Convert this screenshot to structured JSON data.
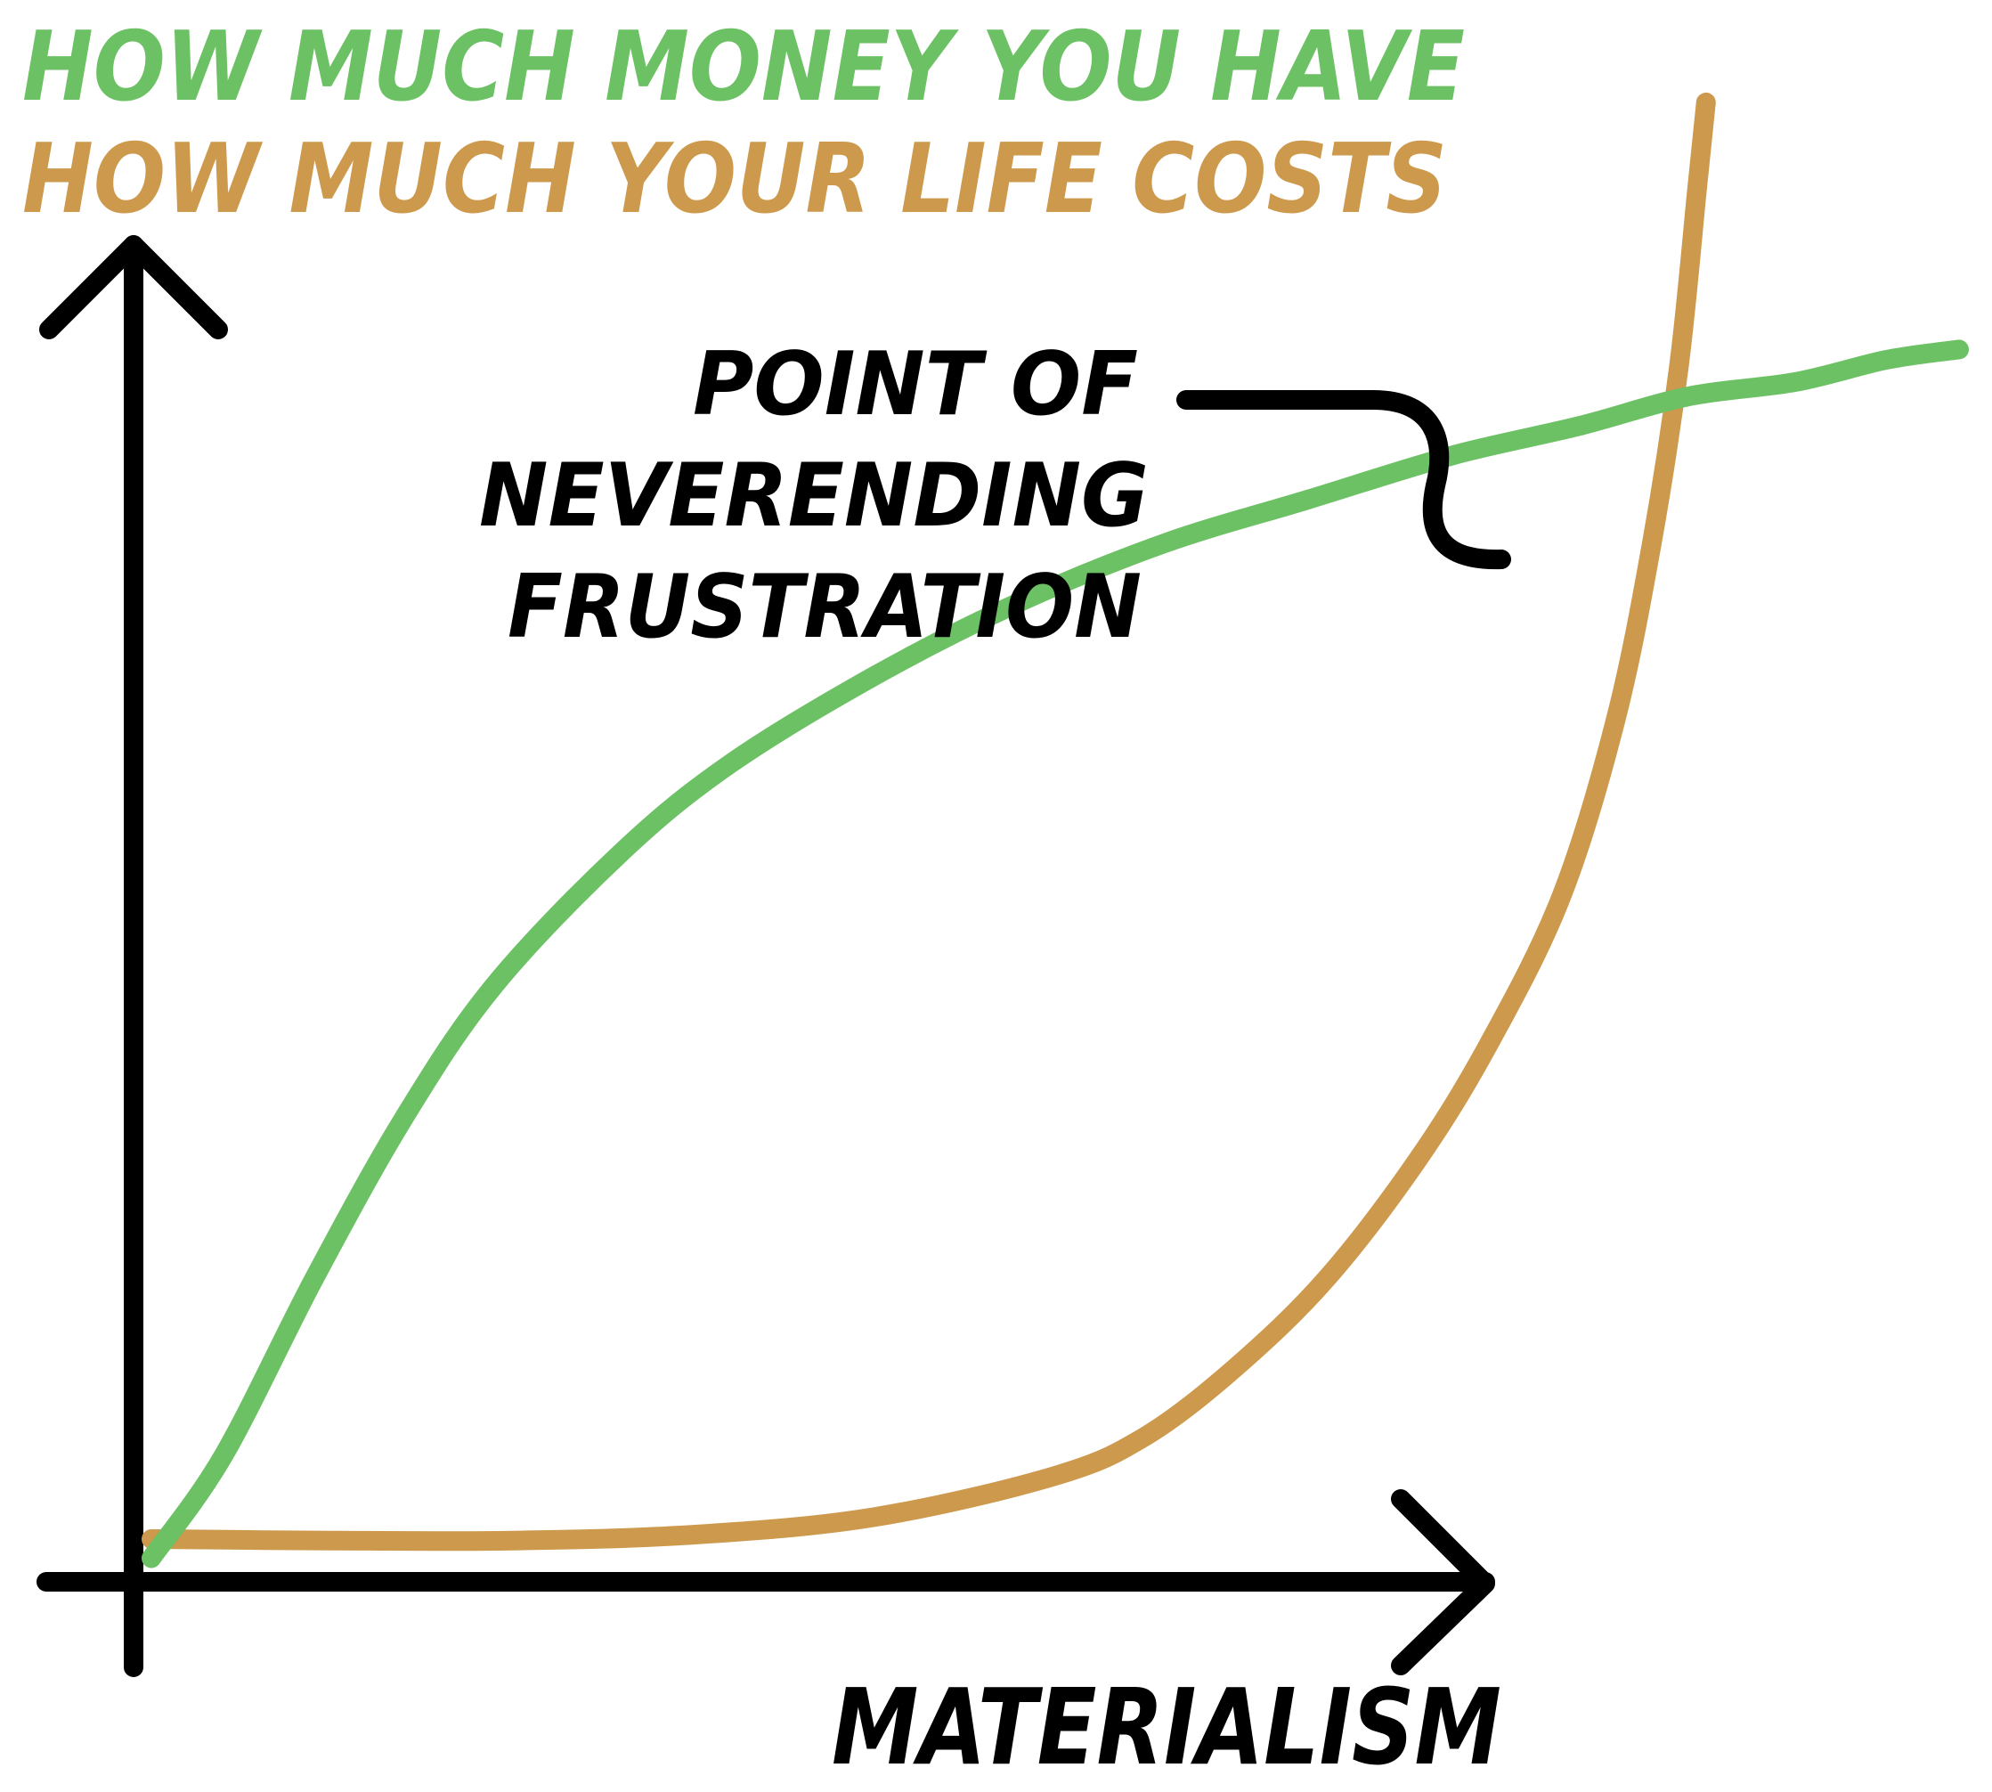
{
  "chart_data": {
    "type": "line",
    "title": "",
    "xlabel": "MATERIALISM",
    "ylabel": "",
    "xlim": [
      0,
      100
    ],
    "ylim": [
      0,
      100
    ],
    "grid": false,
    "legend": {
      "position": "top-left",
      "entries": [
        {
          "label": "HOW MUCH MONEY YOU HAVE",
          "color": "#6cc164"
        },
        {
          "label": "HOW MUCH YOUR LIFE COSTS",
          "color": "#cd994d"
        }
      ]
    },
    "series": [
      {
        "name": "HOW MUCH MONEY YOU HAVE",
        "color": "#6cc164",
        "x": [
          0,
          4,
          9,
          14,
          19,
          26,
          32,
          40,
          48,
          56,
          64,
          72,
          79,
          85,
          91,
          96,
          100
        ],
        "y": [
          1,
          8,
          20,
          31,
          40,
          49,
          55,
          61,
          66,
          70,
          73,
          76,
          78,
          80,
          81,
          82.5,
          83.2
        ]
      },
      {
        "name": "HOW MUCH YOUR LIFE COSTS",
        "color": "#cd994d",
        "x": [
          0,
          10,
          20,
          30,
          40,
          50,
          55,
          60,
          65,
          70,
          74,
          78,
          81,
          83,
          84.5,
          85.5,
          86
        ],
        "y": [
          2.3,
          2.2,
          2.2,
          2.6,
          3.8,
          6.6,
          9.3,
          14,
          20,
          28,
          36,
          46,
          58,
          70,
          82,
          94,
          100
        ]
      }
    ],
    "annotations": [
      {
        "text": [
          "POINT OF",
          "NEVERENDING",
          "FRUSTRATION"
        ],
        "x": 84.1,
        "y": 80.6
      }
    ]
  }
}
